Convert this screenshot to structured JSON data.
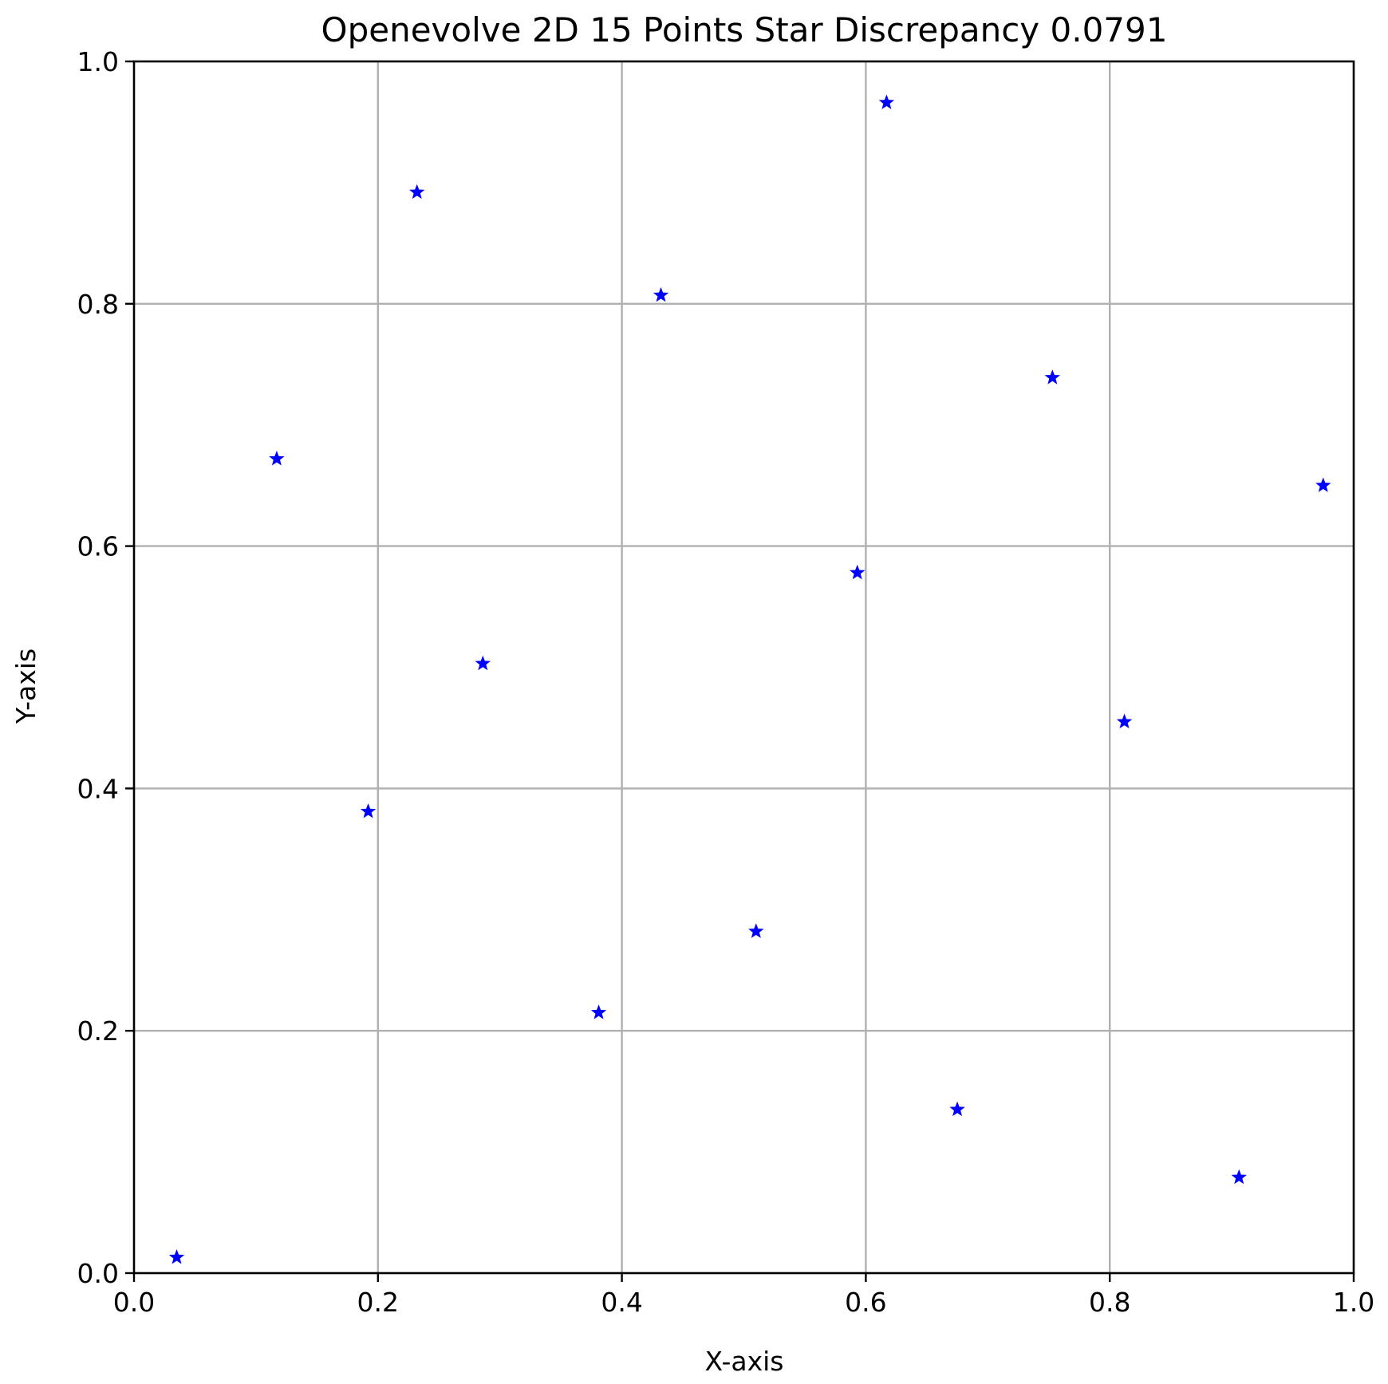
{
  "chart_data": {
    "type": "scatter",
    "title": "Openevolve 2D 15 Points Star Discrepancy 0.0791",
    "xlabel": "X-axis",
    "ylabel": "Y-axis",
    "xlim": [
      0.0,
      1.0
    ],
    "ylim": [
      0.0,
      1.0
    ],
    "xticks": [
      "0.0",
      "0.2",
      "0.4",
      "0.6",
      "0.8",
      "1.0"
    ],
    "yticks": [
      "0.0",
      "0.2",
      "0.4",
      "0.6",
      "0.8",
      "1.0"
    ],
    "grid": true,
    "marker": "star",
    "marker_color": "#0000ff",
    "points": [
      {
        "x": 0.035,
        "y": 0.013
      },
      {
        "x": 0.117,
        "y": 0.672
      },
      {
        "x": 0.192,
        "y": 0.381
      },
      {
        "x": 0.232,
        "y": 0.892
      },
      {
        "x": 0.286,
        "y": 0.503
      },
      {
        "x": 0.381,
        "y": 0.215
      },
      {
        "x": 0.432,
        "y": 0.807
      },
      {
        "x": 0.51,
        "y": 0.282
      },
      {
        "x": 0.593,
        "y": 0.578
      },
      {
        "x": 0.617,
        "y": 0.966
      },
      {
        "x": 0.675,
        "y": 0.135
      },
      {
        "x": 0.753,
        "y": 0.739
      },
      {
        "x": 0.812,
        "y": 0.455
      },
      {
        "x": 0.906,
        "y": 0.079
      },
      {
        "x": 0.975,
        "y": 0.65
      }
    ]
  }
}
